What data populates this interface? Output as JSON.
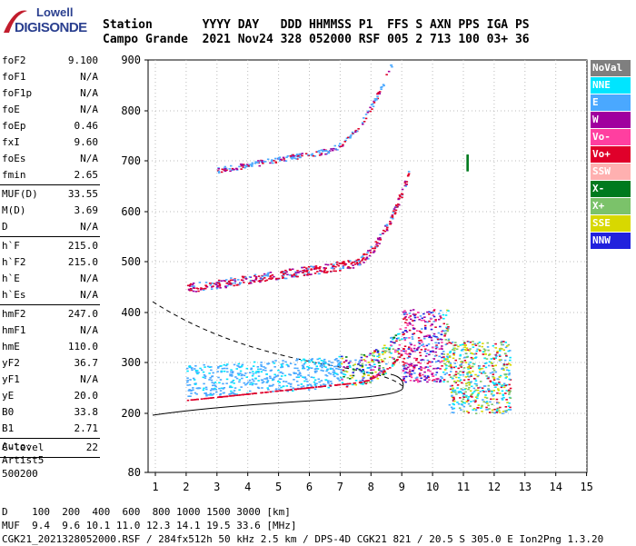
{
  "logo": {
    "line1": "Lowell",
    "line2": "DIGISONDE"
  },
  "header": {
    "line1": "Station       YYYY DAY   DDD HHMMSS P1  FFS S AXN PPS IGA PS",
    "line2": "Campo Grande  2021 Nov24 328 052000 RSF 005 2 713 100 03+ 36"
  },
  "params": [
    {
      "k": "foF2",
      "v": "9.100"
    },
    {
      "k": "foF1",
      "v": "N/A"
    },
    {
      "k": "foF1p",
      "v": "N/A"
    },
    {
      "k": "foE",
      "v": "N/A"
    },
    {
      "k": "foEp",
      "v": "0.46"
    },
    {
      "k": "fxI",
      "v": "9.60"
    },
    {
      "k": "foEs",
      "v": "N/A"
    },
    {
      "k": "fmin",
      "v": "2.65"
    },
    {
      "k": "MUF(D)",
      "v": "33.55"
    },
    {
      "k": "M(D)",
      "v": "3.69"
    },
    {
      "k": "D",
      "v": "N/A"
    },
    {
      "k": "h`F",
      "v": "215.0"
    },
    {
      "k": "h`F2",
      "v": "215.0"
    },
    {
      "k": "h`E",
      "v": "N/A"
    },
    {
      "k": "h`Es",
      "v": "N/A"
    },
    {
      "k": "hmF2",
      "v": "247.0"
    },
    {
      "k": "hmF1",
      "v": "N/A"
    },
    {
      "k": "hmE",
      "v": "110.0"
    },
    {
      "k": "yF2",
      "v": "36.7"
    },
    {
      "k": "yF1",
      "v": "N/A"
    },
    {
      "k": "yE",
      "v": "20.0"
    },
    {
      "k": "B0",
      "v": "33.8"
    },
    {
      "k": "B1",
      "v": "2.71"
    },
    {
      "k": "C-level",
      "v": "22"
    }
  ],
  "auto": {
    "line1": "Auto:",
    "line2": "Artist5",
    "line3": "500200"
  },
  "legend": [
    {
      "label": "NoVal",
      "color": "#7f7f7f"
    },
    {
      "label": "NNE",
      "color": "#00e5ff"
    },
    {
      "label": "E",
      "color": "#4aa8ff"
    },
    {
      "label": "W",
      "color": "#a0009e"
    },
    {
      "label": "Vo-",
      "color": "#ff3fa0"
    },
    {
      "label": "Vo+",
      "color": "#e0002a"
    },
    {
      "label": "SSW",
      "color": "#ffb0b0"
    },
    {
      "label": "X-",
      "color": "#007a1e"
    },
    {
      "label": "X+",
      "color": "#7bc26a"
    },
    {
      "label": "SSE",
      "color": "#d8d800"
    },
    {
      "label": "NNW",
      "color": "#2222dd"
    }
  ],
  "axes": {
    "y_ticks": [
      "900",
      "800",
      "700",
      "600",
      "500",
      "400",
      "300",
      "200",
      "80"
    ],
    "x_ticks": [
      "1",
      "2",
      "3",
      "4",
      "5",
      "6",
      "7",
      "8",
      "9",
      "10",
      "11",
      "12",
      "13",
      "14",
      "15"
    ]
  },
  "footer": {
    "line1": "D    100  200  400  600  800 1000 1500 3000 [km]",
    "line2": "MUF  9.4  9.6 10.1 11.0 12.3 14.1 19.5 33.6 [MHz]",
    "line3": "CGK21_2021328052000.RSF / 284fx512h 50 kHz 2.5 km / DPS-4D CGK21 821 / 20.5 S 305.0 E Ion2Png 1.3.20"
  }
}
